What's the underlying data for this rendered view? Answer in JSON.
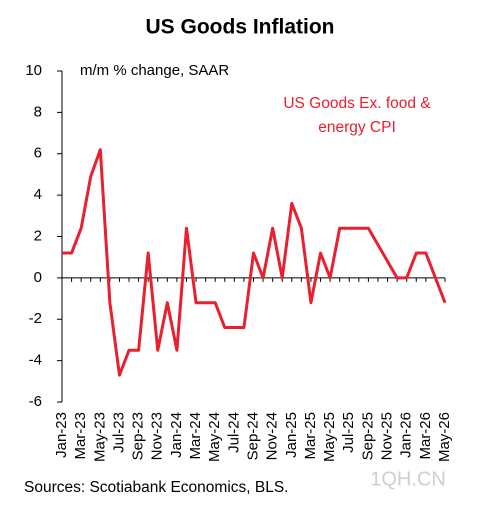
{
  "chart_data": {
    "type": "line",
    "title": "US Goods Inflation",
    "subtitle": "m/m % change, SAAR",
    "source": "Sources: Scotiabank Economics, BLS.",
    "watermark": "1QH.CN",
    "categories": [
      "Jan-23",
      null,
      "Mar-23",
      null,
      "May-23",
      null,
      "Jul-23",
      null,
      "Sep-23",
      null,
      "Nov-23",
      null,
      "Jan-24",
      null,
      "Mar-24",
      null,
      "May-24",
      null,
      "Jul-24",
      null,
      "Sep-24",
      null,
      "Nov-24",
      null,
      "Jan-25",
      null,
      "Mar-25",
      null,
      "May-25",
      null,
      "Jul-25",
      null,
      "Sep-25",
      null,
      "Nov-25",
      null,
      "Jan-26",
      null,
      "Mar-26",
      null,
      "May-26"
    ],
    "series": [
      {
        "name": "US Goods Ex. food & energy CPI",
        "color": "#e8202f",
        "values": [
          1.2,
          1.2,
          2.4,
          4.9,
          6.2,
          -1.2,
          -4.7,
          -3.5,
          -3.5,
          1.2,
          -3.5,
          -1.2,
          -3.5,
          2.4,
          -1.2,
          -1.2,
          -1.2,
          -2.4,
          -2.4,
          -2.4,
          1.2,
          0,
          2.4,
          0,
          3.6,
          2.4,
          -1.2,
          1.2,
          0,
          2.4,
          2.4,
          2.4,
          2.4,
          1.6,
          0.8,
          0,
          0,
          1.2,
          1.2,
          0,
          -1.2
        ]
      }
    ],
    "ylim": [
      -6,
      10
    ],
    "yticks": [
      -6,
      -4,
      -2,
      0,
      2,
      4,
      6,
      8,
      10
    ]
  }
}
